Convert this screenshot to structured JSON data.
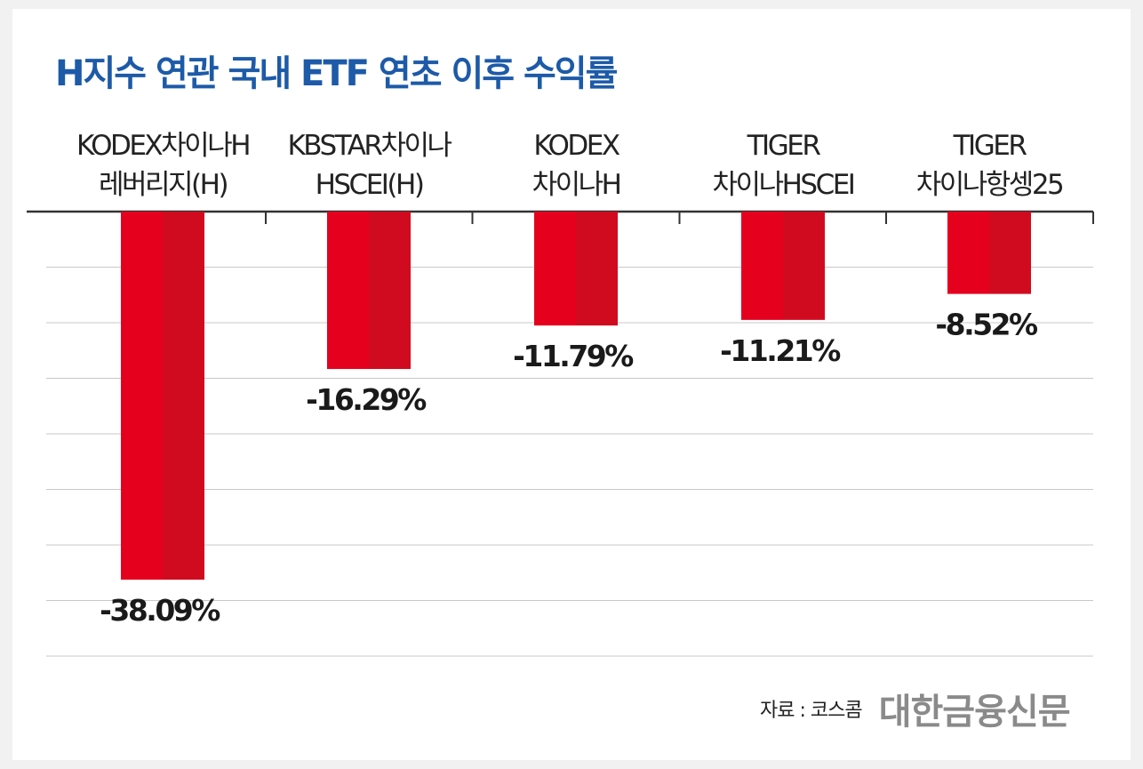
{
  "chart_data": {
    "type": "bar",
    "title": "H지수 연관 국내 ETF 연초 이후 수익률",
    "categories": [
      [
        "KODEX차이나H",
        "레버리지(H)"
      ],
      [
        "KBSTAR차이나",
        "HSCEI(H)"
      ],
      [
        "KODEX",
        "차이나H"
      ],
      [
        "TIGER",
        "차이나HSCEI"
      ],
      [
        "TIGER",
        "차이나항셍25"
      ]
    ],
    "values": [
      -38.09,
      -16.29,
      -11.79,
      -11.21,
      -8.52
    ],
    "value_labels": [
      "-38.09%",
      "-16.29%",
      "-11.79%",
      "-11.21%",
      "-8.52%"
    ],
    "unit": "%",
    "ylim": [
      -40,
      0
    ],
    "grid": true,
    "xlabel": "",
    "ylabel": ""
  },
  "source": {
    "label": "자료 : 코스콤",
    "brand": "대한금융신문"
  },
  "colors": {
    "title": "#1d5aa8",
    "bar_left": "#e5001e",
    "bar_right": "#d10b1f",
    "gridline": "#c8c8c8",
    "axis": "#333333"
  }
}
